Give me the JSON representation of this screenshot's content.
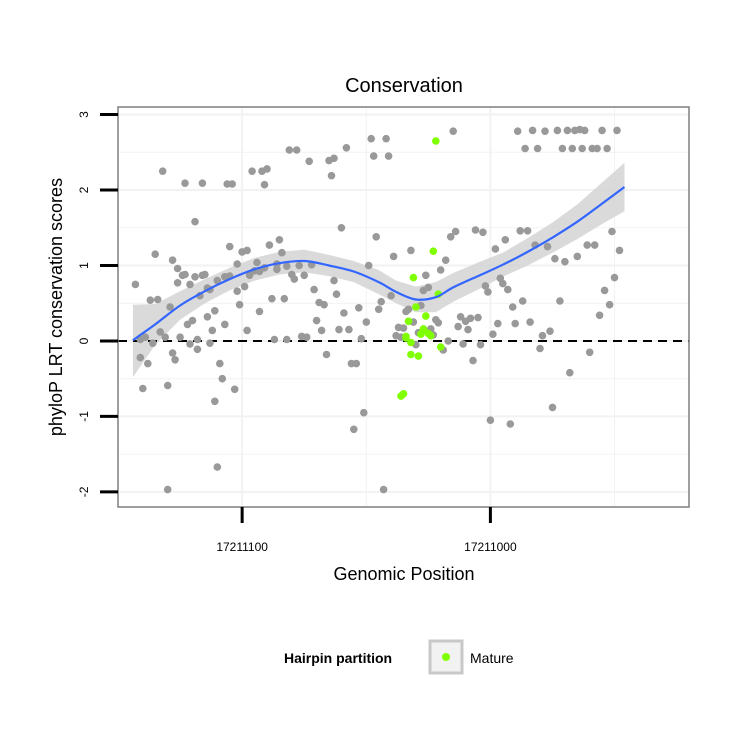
{
  "chart_data": {
    "type": "scatter",
    "title": "Conservation",
    "xlabel": "Genomic Position",
    "ylabel": "phyloP LRT conservation scores",
    "x_reversed": true,
    "xlim": [
      17211150,
      17210920
    ],
    "ylim": [
      -2.2,
      3.1
    ],
    "x_ticks": [
      17211100,
      17211000
    ],
    "x_tick_labels": [
      "17211100",
      "17211000"
    ],
    "y_ticks": [
      -2,
      -1,
      0,
      1,
      2,
      3
    ],
    "y_tick_labels": [
      "-2",
      "-1",
      "0",
      "1",
      "2",
      "3"
    ],
    "grid": true,
    "reference_line": {
      "y": 0,
      "style": "dashed",
      "color": "#000000"
    },
    "legend": {
      "title": "Hairpin partition",
      "position": "bottom",
      "entries": [
        "Mature"
      ]
    },
    "colors": {
      "other": "#999999",
      "mature": "#7fff00",
      "smooth": "#3366ff",
      "ribbon": "#d3d3d3"
    },
    "series": [
      {
        "name": "",
        "color": "#999999",
        "points": [
          [
            17211143,
            0.75
          ],
          [
            17211141,
            0.02
          ],
          [
            17211141,
            -0.22
          ],
          [
            17211140,
            -0.63
          ],
          [
            17211139,
            0.05
          ],
          [
            17211138,
            -0.3
          ],
          [
            17211137,
            0.54
          ],
          [
            17211136,
            -0.03
          ],
          [
            17211135,
            1.15
          ],
          [
            17211134,
            0.55
          ],
          [
            17211133,
            0.12
          ],
          [
            17211132,
            2.25
          ],
          [
            17211131,
            0.05
          ],
          [
            17211130,
            -1.97
          ],
          [
            17211130,
            -0.59
          ],
          [
            17211129,
            0.45
          ],
          [
            17211128,
            -0.16
          ],
          [
            17211128,
            1.07
          ],
          [
            17211127,
            -0.25
          ],
          [
            17211126,
            0.77
          ],
          [
            17211126,
            0.96
          ],
          [
            17211125,
            0.05
          ],
          [
            17211124,
            0.87
          ],
          [
            17211123,
            0.88
          ],
          [
            17211123,
            2.09
          ],
          [
            17211122,
            0.22
          ],
          [
            17211121,
            0.75
          ],
          [
            17211121,
            -0.04
          ],
          [
            17211120,
            0.27
          ],
          [
            17211119,
            0.85
          ],
          [
            17211119,
            1.58
          ],
          [
            17211118,
            0.02
          ],
          [
            17211118,
            -0.11
          ],
          [
            17211117,
            0.6
          ],
          [
            17211116,
            0.87
          ],
          [
            17211116,
            2.09
          ],
          [
            17211115,
            0.88
          ],
          [
            17211114,
            0.7
          ],
          [
            17211114,
            0.32
          ],
          [
            17211113,
            0.68
          ],
          [
            17211113,
            -0.03
          ],
          [
            17211112,
            0.14
          ],
          [
            17211111,
            0.4
          ],
          [
            17211111,
            -0.8
          ],
          [
            17211110,
            -1.67
          ],
          [
            17211110,
            0.8
          ],
          [
            17211109,
            -0.3
          ],
          [
            17211108,
            -0.5
          ],
          [
            17211107,
            0.22
          ],
          [
            17211107,
            0.85
          ],
          [
            17211106,
            2.08
          ],
          [
            17211105,
            1.25
          ],
          [
            17211105,
            0.86
          ],
          [
            17211104,
            2.08
          ],
          [
            17211103,
            -0.64
          ],
          [
            17211102,
            1.02
          ],
          [
            17211102,
            0.66
          ],
          [
            17211101,
            0.48
          ],
          [
            17211100,
            1.18
          ],
          [
            17211099,
            0.72
          ],
          [
            17211098,
            1.2
          ],
          [
            17211098,
            0.14
          ],
          [
            17211097,
            0.87
          ],
          [
            17211096,
            2.25
          ],
          [
            17211095,
            0.93
          ],
          [
            17211094,
            1.04
          ],
          [
            17211093,
            0.92
          ],
          [
            17211093,
            0.39
          ],
          [
            17211092,
            2.25
          ],
          [
            17211091,
            2.07
          ],
          [
            17211091,
            0.97
          ],
          [
            17211090,
            2.28
          ],
          [
            17211089,
            1.27
          ],
          [
            17211088,
            0.56
          ],
          [
            17211087,
            0.02
          ],
          [
            17211086,
            0.95
          ],
          [
            17211086,
            1.02
          ],
          [
            17211085,
            1.34
          ],
          [
            17211084,
            1.17
          ],
          [
            17211083,
            0.56
          ],
          [
            17211082,
            0.99
          ],
          [
            17211082,
            0.02
          ],
          [
            17211081,
            2.53
          ],
          [
            17211080,
            0.88
          ],
          [
            17211079,
            0.82
          ],
          [
            17211078,
            2.53
          ],
          [
            17211077,
            1.0
          ],
          [
            17211076,
            0.06
          ],
          [
            17211075,
            0.87
          ],
          [
            17211074,
            0.05
          ],
          [
            17211073,
            2.38
          ],
          [
            17211072,
            1.01
          ],
          [
            17211071,
            0.68
          ],
          [
            17211070,
            0.27
          ],
          [
            17211069,
            0.51
          ],
          [
            17211068,
            0.14
          ],
          [
            17211067,
            0.48
          ],
          [
            17211066,
            -0.18
          ],
          [
            17211065,
            2.39
          ],
          [
            17211064,
            2.19
          ],
          [
            17211063,
            2.42
          ],
          [
            17211063,
            0.8
          ],
          [
            17211062,
            0.62
          ],
          [
            17211061,
            0.15
          ],
          [
            17211060,
            1.5
          ],
          [
            17211059,
            0.37
          ],
          [
            17211058,
            2.56
          ],
          [
            17211057,
            0.15
          ],
          [
            17211056,
            -0.3
          ],
          [
            17211055,
            -1.17
          ],
          [
            17211054,
            -0.3
          ],
          [
            17211053,
            0.44
          ],
          [
            17211052,
            0.03
          ],
          [
            17211051,
            -0.95
          ],
          [
            17211050,
            0.25
          ],
          [
            17211049,
            1.0
          ],
          [
            17211048,
            2.68
          ],
          [
            17211047,
            2.45
          ],
          [
            17211046,
            1.38
          ],
          [
            17211045,
            0.42
          ],
          [
            17211044,
            0.52
          ],
          [
            17211043,
            -1.97
          ],
          [
            17211042,
            2.68
          ],
          [
            17211041,
            2.45
          ],
          [
            17211040,
            0.6
          ],
          [
            17211039,
            1.12
          ],
          [
            17211038,
            0.07
          ],
          [
            17211037,
            0.18
          ],
          [
            17211036,
            0.05
          ],
          [
            17211035,
            0.17
          ],
          [
            17211034,
            0.39
          ],
          [
            17211033,
            0.42
          ],
          [
            17211032,
            1.2
          ],
          [
            17211031,
            0.25
          ],
          [
            17211030,
            -0.05
          ],
          [
            17211029,
            0.11
          ],
          [
            17211028,
            0.47
          ],
          [
            17211027,
            0.67
          ],
          [
            17211026,
            0.87
          ],
          [
            17211025,
            0.71
          ],
          [
            17211024,
            0.16
          ],
          [
            17211023,
            0.08
          ],
          [
            17211022,
            0.28
          ],
          [
            17211021,
            0.24
          ],
          [
            17211020,
            0.94
          ],
          [
            17211019,
            -0.12
          ],
          [
            17211018,
            1.07
          ],
          [
            17211017,
            0.0
          ],
          [
            17211016,
            1.38
          ],
          [
            17211015,
            2.78
          ],
          [
            17211014,
            1.45
          ],
          [
            17211013,
            0.19
          ],
          [
            17211012,
            0.32
          ],
          [
            17211011,
            -0.04
          ],
          [
            17211010,
            0.26
          ],
          [
            17211009,
            0.15
          ],
          [
            17211008,
            0.3
          ],
          [
            17211007,
            -0.26
          ],
          [
            17211006,
            1.47
          ],
          [
            17211005,
            0.31
          ],
          [
            17211004,
            -0.05
          ],
          [
            17211003,
            1.44
          ],
          [
            17211002,
            0.73
          ],
          [
            17211001,
            0.65
          ],
          [
            17211000,
            -1.05
          ],
          [
            17210999,
            0.09
          ],
          [
            17210998,
            1.22
          ],
          [
            17210997,
            0.23
          ],
          [
            17210996,
            0.83
          ],
          [
            17210995,
            0.76
          ],
          [
            17210994,
            1.34
          ],
          [
            17210993,
            0.68
          ],
          [
            17210992,
            -1.1
          ],
          [
            17210991,
            0.45
          ],
          [
            17210990,
            0.23
          ],
          [
            17210989,
            2.78
          ],
          [
            17210988,
            1.46
          ],
          [
            17210987,
            0.53
          ],
          [
            17210986,
            2.55
          ],
          [
            17210985,
            1.46
          ],
          [
            17210984,
            0.25
          ],
          [
            17210983,
            2.79
          ],
          [
            17210982,
            1.27
          ],
          [
            17210981,
            2.55
          ],
          [
            17210980,
            -0.1
          ],
          [
            17210979,
            0.07
          ],
          [
            17210978,
            2.78
          ],
          [
            17210977,
            1.25
          ],
          [
            17210976,
            0.13
          ],
          [
            17210975,
            -0.88
          ],
          [
            17210974,
            1.09
          ],
          [
            17210973,
            2.79
          ],
          [
            17210972,
            0.53
          ],
          [
            17210971,
            2.55
          ],
          [
            17210970,
            1.05
          ],
          [
            17210969,
            2.79
          ],
          [
            17210968,
            -0.42
          ],
          [
            17210967,
            2.55
          ],
          [
            17210966,
            2.79
          ],
          [
            17210965,
            1.12
          ],
          [
            17210964,
            2.8
          ],
          [
            17210963,
            2.55
          ],
          [
            17210962,
            2.79
          ],
          [
            17210961,
            1.27
          ],
          [
            17210960,
            -0.15
          ],
          [
            17210959,
            2.55
          ],
          [
            17210958,
            1.27
          ],
          [
            17210957,
            2.55
          ],
          [
            17210956,
            0.34
          ],
          [
            17210955,
            2.79
          ],
          [
            17210954,
            0.67
          ],
          [
            17210953,
            2.55
          ],
          [
            17210952,
            0.48
          ],
          [
            17210951,
            1.45
          ],
          [
            17210950,
            0.84
          ],
          [
            17210949,
            2.79
          ],
          [
            17210948,
            1.2
          ]
        ]
      },
      {
        "name": "Mature",
        "color": "#7fff00",
        "points": [
          [
            17211036,
            -0.73
          ],
          [
            17211035,
            -0.7
          ],
          [
            17211034,
            0.04
          ],
          [
            17211033,
            0.26
          ],
          [
            17211032,
            -0.18
          ],
          [
            17211031,
            0.84
          ],
          [
            17211030,
            0.45
          ],
          [
            17211029,
            -0.2
          ],
          [
            17211028,
            0.09
          ],
          [
            17211027,
            0.16
          ],
          [
            17211026,
            0.33
          ],
          [
            17211025,
            0.1
          ],
          [
            17211024,
            0.07
          ],
          [
            17211023,
            1.19
          ],
          [
            17211022,
            2.65
          ],
          [
            17211021,
            0.62
          ],
          [
            17211020,
            -0.08
          ],
          [
            17211032,
            -0.02
          ],
          [
            17211034,
            0.06
          ]
        ]
      }
    ],
    "smooth": {
      "color": "#3366ff",
      "x": [
        17211144,
        17211135,
        17211125,
        17211115,
        17211105,
        17211095,
        17211085,
        17211075,
        17211065,
        17211055,
        17211045,
        17211038,
        17211030,
        17211022,
        17211015,
        17211005,
        17210995,
        17210985,
        17210975,
        17210965,
        17210955,
        17210946
      ],
      "y": [
        0.01,
        0.22,
        0.47,
        0.66,
        0.82,
        0.95,
        1.03,
        1.06,
        1.0,
        0.92,
        0.78,
        0.65,
        0.55,
        0.58,
        0.71,
        0.86,
        1.01,
        1.18,
        1.37,
        1.58,
        1.82,
        2.04
      ],
      "lower": [
        -0.48,
        -0.05,
        0.28,
        0.5,
        0.67,
        0.8,
        0.88,
        0.91,
        0.86,
        0.78,
        0.62,
        0.5,
        0.38,
        0.38,
        0.52,
        0.68,
        0.85,
        1.0,
        1.17,
        1.35,
        1.55,
        1.72
      ],
      "upper": [
        0.48,
        0.49,
        0.66,
        0.82,
        0.97,
        1.1,
        1.18,
        1.21,
        1.14,
        1.06,
        0.94,
        0.8,
        0.72,
        0.78,
        0.9,
        1.04,
        1.17,
        1.36,
        1.57,
        1.81,
        2.1,
        2.36
      ]
    }
  }
}
